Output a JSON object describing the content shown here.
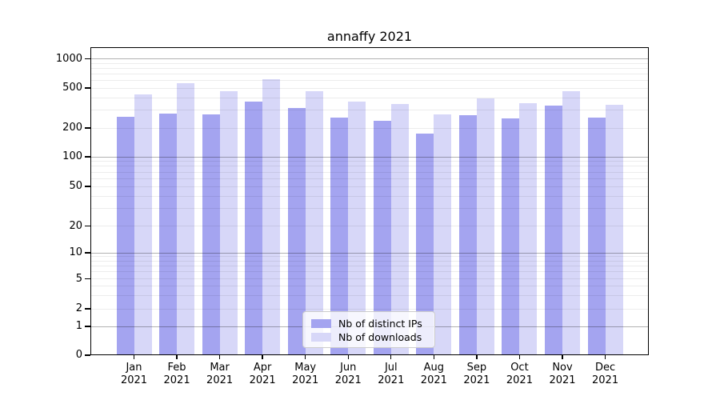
{
  "title": "annaffy 2021",
  "legend": {
    "items": [
      {
        "label": "Nb of distinct IPs",
        "color": "#a4a4f0"
      },
      {
        "label": "Nb of downloads",
        "color": "#d7d7f8"
      }
    ]
  },
  "colors": {
    "distinct_ips_bar": "#a4a4f0",
    "downloads_bar": "#d7d7f8",
    "major_grid": "#b3b3b3",
    "minor_grid": "#ebebeb"
  },
  "chart_data": {
    "type": "bar",
    "title": "annaffy 2021",
    "categories": [
      "Jan 2021",
      "Feb 2021",
      "Mar 2021",
      "Apr 2021",
      "May 2021",
      "Jun 2021",
      "Jul 2021",
      "Aug 2021",
      "Sep 2021",
      "Oct 2021",
      "Nov 2021",
      "Dec 2021"
    ],
    "series": [
      {
        "name": "Nb of distinct IPs",
        "color": "#a4a4f0",
        "values": [
          260,
          280,
          273,
          366,
          316,
          255,
          238,
          176,
          267,
          251,
          335,
          255
        ]
      },
      {
        "name": "Nb of downloads",
        "color": "#d7d7f8",
        "values": [
          434,
          560,
          464,
          618,
          464,
          365,
          346,
          272,
          394,
          356,
          463,
          340
        ]
      }
    ],
    "xlabel": "",
    "ylabel": "",
    "y_scale": "log",
    "y_tick_values": [
      0,
      1,
      2,
      5,
      10,
      20,
      50,
      100,
      200,
      500,
      1000
    ],
    "ylim": [
      0,
      1300
    ],
    "grid": true,
    "legend_position": "lower center inside plot"
  }
}
